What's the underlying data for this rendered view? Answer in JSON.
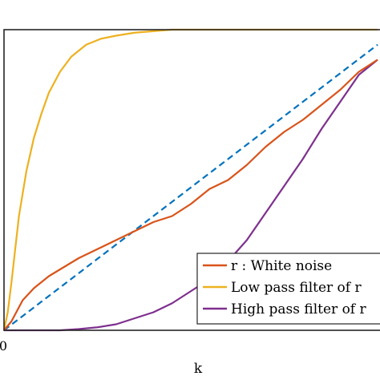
{
  "chart_data": {
    "type": "line",
    "title": "",
    "xlabel": "k",
    "ylabel": "",
    "x_tick_labels": [
      "0"
    ],
    "xlim": [
      0,
      1
    ],
    "ylim": [
      0,
      1
    ],
    "grid": false,
    "legend_position": "bottom-right",
    "series": [
      {
        "name": "r :  White noise",
        "color": "#d95319",
        "style": "solid",
        "x": [
          0,
          0.02,
          0.05,
          0.08,
          0.12,
          0.16,
          0.2,
          0.25,
          0.3,
          0.35,
          0.4,
          0.45,
          0.5,
          0.55,
          0.6,
          0.65,
          0.7,
          0.75,
          0.8,
          0.85,
          0.9,
          0.95,
          1.0
        ],
        "y": [
          0,
          0.03,
          0.1,
          0.14,
          0.18,
          0.21,
          0.24,
          0.27,
          0.3,
          0.33,
          0.36,
          0.38,
          0.42,
          0.47,
          0.5,
          0.55,
          0.61,
          0.66,
          0.7,
          0.75,
          0.8,
          0.86,
          0.9
        ]
      },
      {
        "name": "Low pass filter of r",
        "color": "#edb120",
        "style": "solid",
        "x": [
          0,
          0.01,
          0.02,
          0.04,
          0.06,
          0.08,
          0.1,
          0.12,
          0.15,
          0.18,
          0.22,
          0.26,
          0.3,
          0.35,
          0.4,
          0.45,
          0.5,
          0.6,
          0.7,
          0.8,
          0.9,
          1.0
        ],
        "y": [
          0,
          0.06,
          0.16,
          0.38,
          0.53,
          0.64,
          0.72,
          0.79,
          0.86,
          0.91,
          0.95,
          0.97,
          0.98,
          0.99,
          0.995,
          1.0,
          1.0,
          1.0,
          1.0,
          1.0,
          1.0,
          1.0
        ]
      },
      {
        "name": "High pass filter of r",
        "color": "#7e2f8e",
        "style": "solid",
        "x": [
          0,
          0.1,
          0.15,
          0.2,
          0.25,
          0.3,
          0.35,
          0.4,
          0.45,
          0.5,
          0.55,
          0.6,
          0.65,
          0.7,
          0.75,
          0.8,
          0.85,
          0.9,
          0.95,
          1.0
        ],
        "y": [
          0,
          0.0,
          0.0,
          0.004,
          0.01,
          0.02,
          0.04,
          0.06,
          0.09,
          0.13,
          0.17,
          0.23,
          0.3,
          0.39,
          0.48,
          0.57,
          0.67,
          0.76,
          0.85,
          0.9
        ]
      },
      {
        "name": "",
        "color": "#0072bd",
        "style": "dashed",
        "x": [
          0,
          1
        ],
        "y": [
          0,
          0.95
        ]
      }
    ]
  }
}
